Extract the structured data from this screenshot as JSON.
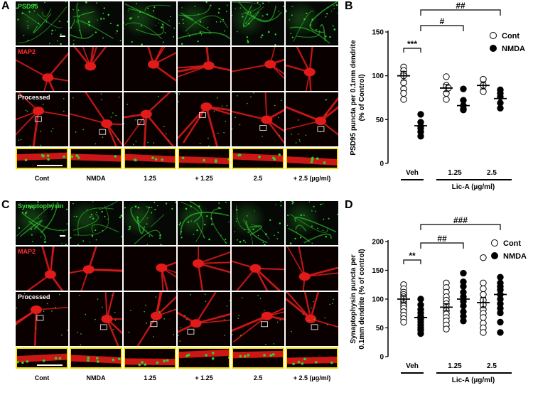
{
  "panels": {
    "A": {
      "letter": "A",
      "row_labels": [
        "PSD95",
        "MAP2",
        "Processed"
      ],
      "columns": [
        "Cont",
        "NMDA",
        "1.25",
        "+ 1.25",
        "2.5",
        "+ 2.5 (µg/ml)"
      ]
    },
    "C": {
      "letter": "C",
      "row_labels": [
        "Synaptophysin",
        "MAP2",
        "Processed"
      ],
      "columns": [
        "Cont",
        "NMDA",
        "1.25",
        "+ 1.25",
        "2.5",
        "+ 2.5 (µg/ml)"
      ]
    },
    "B": {
      "letter": "B"
    },
    "D": {
      "letter": "D"
    }
  },
  "colors": {
    "psd_green": "#2fd12f",
    "map2_red": "#e31a1a",
    "zoom_border": "#f2e400"
  },
  "chart_data": [
    {
      "id": "B",
      "type": "scatter",
      "ylabel": "PSD95 puncta per 0.1mm dendrite (% of Control)",
      "ylabel_line1": "PSD95 puncta per 0.1mm dendrite",
      "ylabel_line2": "(% of Control)",
      "ylim": [
        0,
        150
      ],
      "yticks": [
        "0",
        "50",
        "100",
        "150"
      ],
      "groups": [
        "Veh",
        "1.25",
        "2.5"
      ],
      "xlabel_right": "Lic-A (µg/ml)",
      "legend": [
        "Cont",
        "NMDA"
      ],
      "legend_placement": "top-right",
      "series": [
        {
          "name": "Cont",
          "marker": "open",
          "points": [
            [
              0,
              110
            ],
            [
              0,
              106
            ],
            [
              0,
              102
            ],
            [
              0,
              100
            ],
            [
              0,
              92
            ],
            [
              0,
              85
            ],
            [
              0,
              80
            ],
            [
              0,
              73
            ],
            [
              1,
              99
            ],
            [
              1,
              89
            ],
            [
              1,
              86
            ],
            [
              1,
              80
            ],
            [
              1,
              73
            ],
            [
              2,
              96
            ],
            [
              2,
              89
            ],
            [
              2,
              82
            ]
          ],
          "means": [
            100,
            86,
            89
          ],
          "sems": [
            5,
            4,
            4
          ]
        },
        {
          "name": "NMDA",
          "marker": "filled",
          "points": [
            [
              0,
              56
            ],
            [
              0,
              47
            ],
            [
              0,
              42
            ],
            [
              0,
              40
            ],
            [
              0,
              36
            ],
            [
              0,
              31
            ],
            [
              1,
              85
            ],
            [
              1,
              72
            ],
            [
              1,
              66
            ],
            [
              1,
              62
            ],
            [
              1,
              61
            ],
            [
              2,
              84
            ],
            [
              2,
              80
            ],
            [
              2,
              76
            ],
            [
              2,
              69
            ],
            [
              2,
              63
            ]
          ],
          "means": [
            43,
            66,
            74
          ],
          "sems": [
            4,
            4,
            4
          ]
        }
      ],
      "significance": [
        {
          "label": "***",
          "from": "Veh Cont",
          "to": "Veh NMDA"
        },
        {
          "label": "#",
          "from": "Veh NMDA",
          "to": "1.25 NMDA"
        },
        {
          "label": "##",
          "from": "Veh NMDA",
          "to": "2.5 NMDA"
        }
      ]
    },
    {
      "id": "D",
      "type": "scatter",
      "ylabel": "Synaptophysin puncta per 0.1mm dendrite (% of control)",
      "ylabel_line1": "Synaptophysin puncta per",
      "ylabel_line2": "0.1mm dendrite (% of control)",
      "ylim": [
        0,
        200
      ],
      "yticks": [
        "0",
        "50",
        "100",
        "150",
        "200"
      ],
      "groups": [
        "Veh",
        "1.25",
        "2.5"
      ],
      "xlabel_right": "Lic-A (µg/ml)",
      "legend": [
        "Cont",
        "NMDA"
      ],
      "legend_placement": "top-right",
      "series": [
        {
          "name": "Cont",
          "marker": "open",
          "points": [
            [
              0,
              125
            ],
            [
              0,
              118
            ],
            [
              0,
              112
            ],
            [
              0,
              108
            ],
            [
              0,
              104
            ],
            [
              0,
              100
            ],
            [
              0,
              96
            ],
            [
              0,
              92
            ],
            [
              0,
              88
            ],
            [
              0,
              84
            ],
            [
              0,
              78
            ],
            [
              0,
              72
            ],
            [
              0,
              66
            ],
            [
              0,
              60
            ],
            [
              1,
              128
            ],
            [
              1,
              120
            ],
            [
              1,
              112
            ],
            [
              1,
              104
            ],
            [
              1,
              98
            ],
            [
              1,
              92
            ],
            [
              1,
              86
            ],
            [
              1,
              80
            ],
            [
              1,
              74
            ],
            [
              1,
              68
            ],
            [
              1,
              62
            ],
            [
              1,
              55
            ],
            [
              1,
              48
            ],
            [
              2,
              172
            ],
            [
              2,
              128
            ],
            [
              2,
              118
            ],
            [
              2,
              108
            ],
            [
              2,
              98
            ],
            [
              2,
              90
            ],
            [
              2,
              82
            ],
            [
              2,
              75
            ],
            [
              2,
              68
            ],
            [
              2,
              58
            ],
            [
              2,
              50
            ],
            [
              2,
              42
            ]
          ],
          "means": [
            100,
            86,
            94
          ],
          "sems": [
            6,
            6,
            9
          ]
        },
        {
          "name": "NMDA",
          "marker": "filled",
          "points": [
            [
              0,
              100
            ],
            [
              0,
              90
            ],
            [
              0,
              82
            ],
            [
              0,
              76
            ],
            [
              0,
              70
            ],
            [
              0,
              65
            ],
            [
              0,
              60
            ],
            [
              0,
              55
            ],
            [
              0,
              50
            ],
            [
              0,
              46
            ],
            [
              0,
              40
            ],
            [
              1,
              145
            ],
            [
              1,
              130
            ],
            [
              1,
              122
            ],
            [
              1,
              112
            ],
            [
              1,
              104
            ],
            [
              1,
              96
            ],
            [
              1,
              88
            ],
            [
              1,
              78
            ],
            [
              1,
              70
            ],
            [
              1,
              62
            ],
            [
              2,
              138
            ],
            [
              2,
              128
            ],
            [
              2,
              122
            ],
            [
              2,
              116
            ],
            [
              2,
              108
            ],
            [
              2,
              100
            ],
            [
              2,
              92
            ],
            [
              2,
              84
            ],
            [
              2,
              76
            ],
            [
              2,
              60
            ],
            [
              2,
              42
            ]
          ],
          "means": [
            68,
            100,
            108
          ],
          "sems": [
            7,
            9,
            8
          ]
        }
      ],
      "significance": [
        {
          "label": "**",
          "from": "Veh Cont",
          "to": "Veh NMDA"
        },
        {
          "label": "##",
          "from": "Veh NMDA",
          "to": "1.25 NMDA"
        },
        {
          "label": "###",
          "from": "Veh NMDA",
          "to": "2.5 NMDA"
        }
      ]
    }
  ]
}
